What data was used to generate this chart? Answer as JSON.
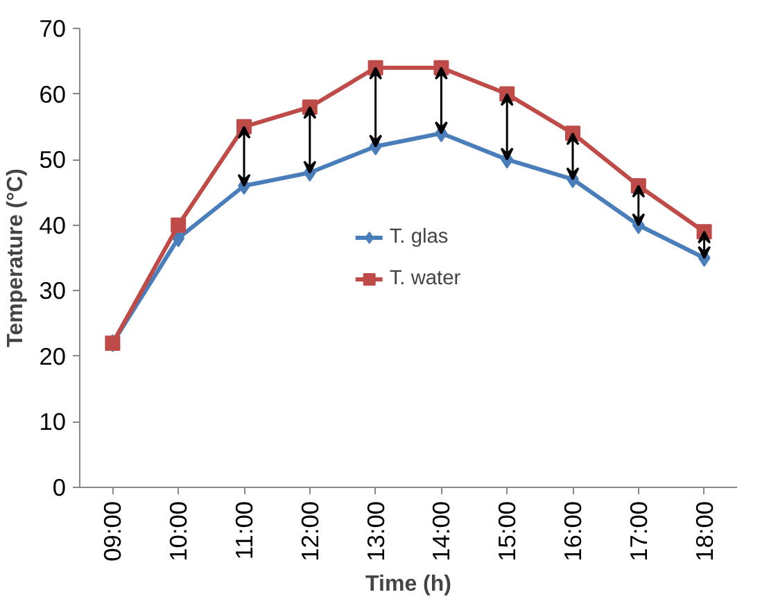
{
  "chart_data": {
    "type": "line",
    "xlabel": "Time (h)",
    "ylabel": "Temperature (°C)",
    "categories": [
      "09:00",
      "10:00",
      "11:00",
      "12:00",
      "13:00",
      "14:00",
      "15:00",
      "16:00",
      "17:00",
      "18:00"
    ],
    "series": [
      {
        "name": "T. glas",
        "color": "#4a7ebb",
        "marker": "diamond",
        "values": [
          22,
          38,
          46,
          48,
          52,
          54,
          50,
          47,
          40,
          35
        ]
      },
      {
        "name": "T. water",
        "color": "#be4b48",
        "marker": "square",
        "values": [
          22,
          40,
          55,
          58,
          64,
          64,
          60,
          54,
          46,
          39
        ]
      }
    ],
    "ylim": [
      0,
      70
    ],
    "yticks": [
      0,
      10,
      20,
      30,
      40,
      50,
      60,
      70
    ],
    "grid": false,
    "legend": "center"
  }
}
